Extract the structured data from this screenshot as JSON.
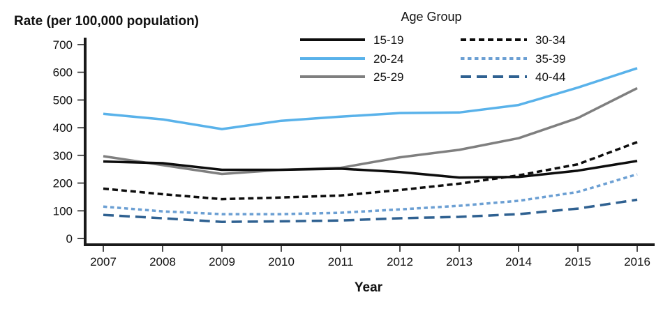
{
  "chart": {
    "y_axis_title": "Rate (per 100,000 population)",
    "x_axis_title": "Year",
    "legend_title": "Age Group"
  },
  "chart_data": {
    "type": "line",
    "title": "",
    "xlabel": "Year",
    "ylabel": "Rate (per 100,000 population)",
    "legend_title": "Age Group",
    "legend_position": "top",
    "grid": false,
    "x": [
      2007,
      2008,
      2009,
      2010,
      2011,
      2012,
      2013,
      2014,
      2015,
      2016
    ],
    "ylim": [
      0,
      700
    ],
    "yticks": [
      0,
      100,
      200,
      300,
      400,
      500,
      600,
      700
    ],
    "series": [
      {
        "name": "15-19",
        "color": "#0d0d0d",
        "dash": "",
        "style": "solid",
        "values": [
          278,
          272,
          248,
          248,
          252,
          240,
          220,
          222,
          245,
          280
        ]
      },
      {
        "name": "20-24",
        "color": "#59B2EA",
        "dash": "",
        "style": "solid",
        "values": [
          450,
          430,
          395,
          425,
          440,
          453,
          455,
          482,
          545,
          615
        ]
      },
      {
        "name": "25-29",
        "color": "#7f7f7f",
        "dash": "",
        "style": "solid",
        "values": [
          297,
          265,
          233,
          248,
          255,
          293,
          320,
          362,
          435,
          543
        ]
      },
      {
        "name": "30-34",
        "color": "#0d0d0d",
        "dash": "8 5",
        "style": "dashed",
        "values": [
          180,
          160,
          142,
          148,
          155,
          175,
          198,
          228,
          268,
          348
        ]
      },
      {
        "name": "35-39",
        "color": "#6B9FD3",
        "dash": "5.5 4.5",
        "style": "dotted-dash",
        "values": [
          115,
          98,
          88,
          88,
          93,
          105,
          118,
          136,
          168,
          232
        ]
      },
      {
        "name": "40-44",
        "color": "#2F6191",
        "dash": "15 8",
        "style": "long-dash",
        "values": [
          85,
          73,
          60,
          62,
          65,
          73,
          78,
          88,
          108,
          140
        ]
      }
    ]
  }
}
